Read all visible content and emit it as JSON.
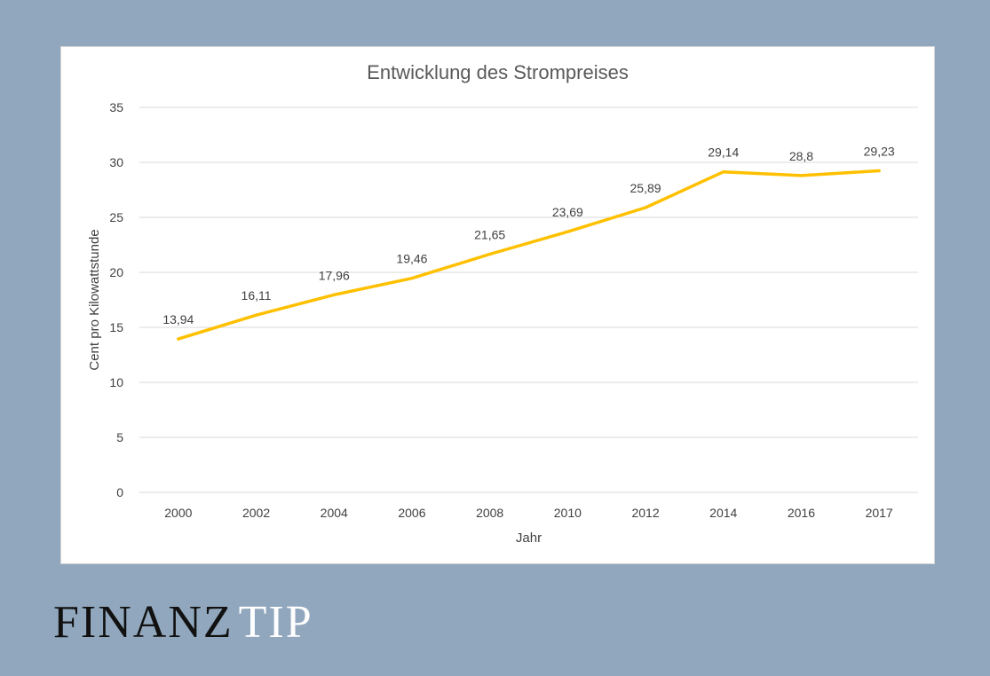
{
  "colors": {
    "background": "#91a7bd",
    "panel": "#ffffff",
    "line": "#ffc000",
    "grid": "#d9d9d9",
    "text": "#404040",
    "logo_dark": "#111111",
    "logo_light": "#ffffff"
  },
  "brand": {
    "part1": "FINANZ",
    "part2": "TIP"
  },
  "chart_data": {
    "type": "line",
    "title": "Entwicklung des Strompreises",
    "xlabel": "Jahr",
    "ylabel": "Cent pro Kilowattstunde",
    "categories": [
      "2000",
      "2002",
      "2004",
      "2006",
      "2008",
      "2010",
      "2012",
      "2014",
      "2016",
      "2017"
    ],
    "series": [
      {
        "values": [
          13.94,
          16.11,
          17.96,
          19.46,
          21.65,
          23.69,
          25.89,
          29.14,
          28.8,
          29.23
        ],
        "labels": [
          "13,94",
          "16,11",
          "17,96",
          "19,46",
          "21,65",
          "23,69",
          "25,89",
          "29,14",
          "28,8",
          "29,23"
        ]
      }
    ],
    "ylim": [
      0,
      35
    ],
    "yticks": [
      "0",
      "5",
      "10",
      "15",
      "20",
      "25",
      "30",
      "35"
    ],
    "grid": true,
    "legend": "none"
  }
}
